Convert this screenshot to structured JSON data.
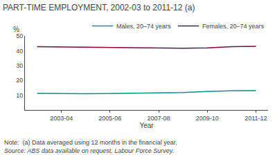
{
  "chart_data": {
    "type": "line",
    "title": "PART-TIME EMPLOYMENT, 2002-03 to 2011-12 (a)",
    "xlabel": "Year",
    "ylabel": "%",
    "annotations": [
      "Note:  (a) Data averaged using 12 months in the financial year.",
      "Source: ABS data available on request, Labour Force Survey."
    ],
    "x": [
      1,
      2,
      3,
      4,
      5,
      6,
      7,
      8,
      9,
      10
    ],
    "series": [
      {
        "name": "Males, 20–74 years",
        "color": "#009090",
        "values": [
          11.2,
          11.0,
          11.0,
          11.1,
          11.3,
          11.5,
          11.8,
          12.5,
          13.0,
          13.1
        ]
      },
      {
        "name": "Females, 20–74 years",
        "color": "#800040",
        "values": [
          42.7,
          42.5,
          42.3,
          42.3,
          42.0,
          41.8,
          41.7,
          41.9,
          42.8,
          43.0
        ]
      }
    ],
    "xlim": [
      0.5,
      10.5
    ],
    "xticks": [
      {
        "value": 2,
        "label": "2003-04"
      },
      {
        "value": 4,
        "label": "2005-06"
      },
      {
        "value": 6,
        "label": "2007-08"
      },
      {
        "value": 8,
        "label": "2009-10"
      },
      {
        "value": 10,
        "label": "2011-12"
      }
    ],
    "ylim": [
      0,
      50
    ],
    "yticks": [
      10,
      20,
      30,
      40,
      50
    ],
    "grid": false,
    "legend": "upper right"
  }
}
